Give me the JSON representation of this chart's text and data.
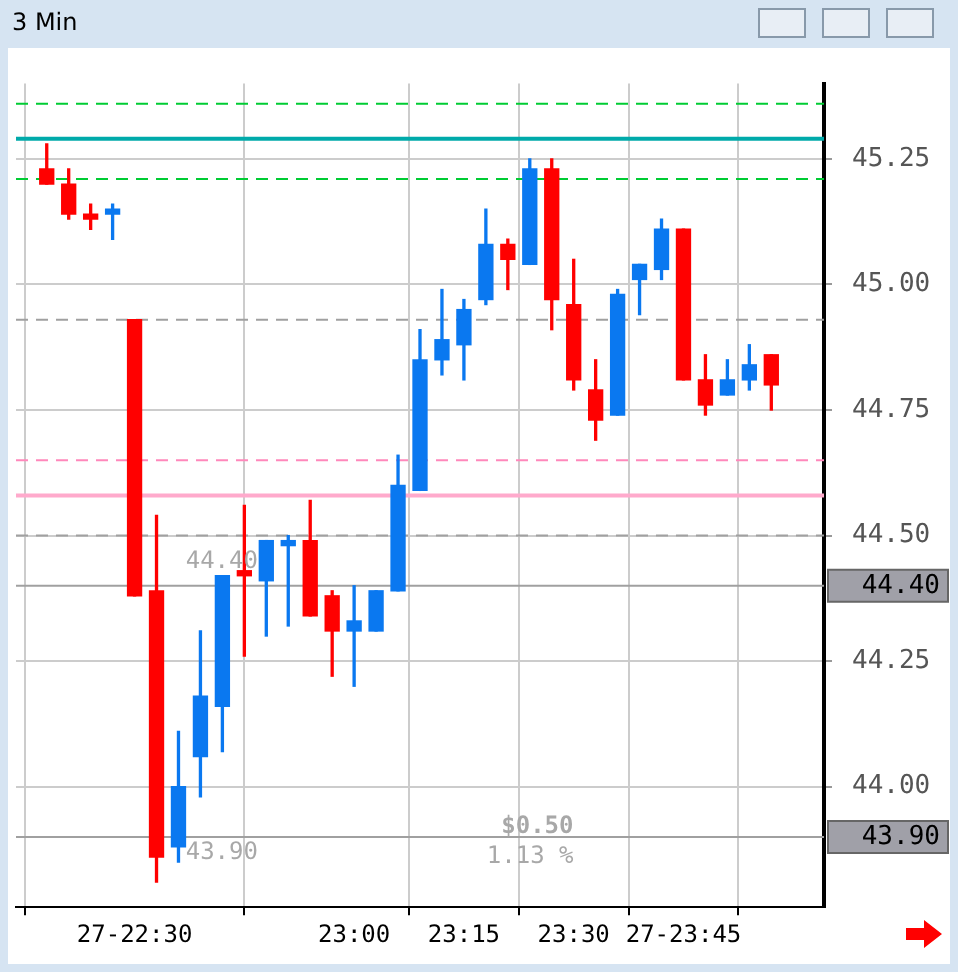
{
  "chart_data": {
    "type": "candlestick",
    "title": "3 Min",
    "x": [
      22.3,
      22.35,
      22.4,
      22.45,
      22.5,
      22.55,
      22.6,
      22.65,
      22.7,
      22.75,
      22.8,
      22.85,
      22.9,
      22.95,
      23,
      23.05,
      23.1,
      23.15,
      23.2,
      23.25,
      23.3,
      23.35,
      23.4,
      23.45,
      23.5,
      23.55,
      23.6,
      23.65,
      23.7,
      23.75,
      23.8,
      23.85,
      23.9,
      23.95
    ],
    "ohlc": [
      [
        45.23,
        45.28,
        45.2,
        45.2
      ],
      [
        45.2,
        45.23,
        45.13,
        45.14
      ],
      [
        45.14,
        45.16,
        45.11,
        45.13
      ],
      [
        45.14,
        45.16,
        45.09,
        45.15
      ],
      [
        44.93,
        44.93,
        44.38,
        44.38
      ],
      [
        44.39,
        44.54,
        43.81,
        43.86
      ],
      [
        43.88,
        44.11,
        43.85,
        44.0
      ],
      [
        44.06,
        44.31,
        43.98,
        44.18
      ],
      [
        44.16,
        44.42,
        44.07,
        44.42
      ],
      [
        44.43,
        44.56,
        44.26,
        44.42
      ],
      [
        44.41,
        44.49,
        44.3,
        44.49
      ],
      [
        44.48,
        44.5,
        44.32,
        44.49
      ],
      [
        44.49,
        44.57,
        44.34,
        44.34
      ],
      [
        44.38,
        44.39,
        44.22,
        44.31
      ],
      [
        44.31,
        44.4,
        44.2,
        44.33
      ],
      [
        44.31,
        44.39,
        44.31,
        44.39
      ],
      [
        44.39,
        44.66,
        44.39,
        44.6
      ],
      [
        44.59,
        44.91,
        44.59,
        44.85
      ],
      [
        44.85,
        44.99,
        44.82,
        44.89
      ],
      [
        44.88,
        44.97,
        44.81,
        44.95
      ],
      [
        44.97,
        45.15,
        44.96,
        45.08
      ],
      [
        45.08,
        45.09,
        44.99,
        45.05
      ],
      [
        45.04,
        45.25,
        45.04,
        45.23
      ],
      [
        45.23,
        45.25,
        44.91,
        44.97
      ],
      [
        44.96,
        45.05,
        44.79,
        44.81
      ],
      [
        44.79,
        44.85,
        44.69,
        44.73
      ],
      [
        44.74,
        44.99,
        44.74,
        44.98
      ],
      [
        45.01,
        45.04,
        44.94,
        45.04
      ],
      [
        45.03,
        45.13,
        45.01,
        45.11
      ],
      [
        45.11,
        45.11,
        44.81,
        44.81
      ],
      [
        44.81,
        44.86,
        44.74,
        44.76
      ],
      [
        44.78,
        44.85,
        44.78,
        44.81
      ],
      [
        44.81,
        44.88,
        44.79,
        44.84
      ],
      [
        44.86,
        44.86,
        44.75,
        44.8
      ]
    ],
    "colors": [
      "#ff0000",
      "#ff0000",
      "#ff0000",
      "#0a78f0",
      "#ff0000",
      "#ff0000",
      "#0a78f0",
      "#0a78f0",
      "#0a78f0",
      "#ff0000",
      "#0a78f0",
      "#0a78f0",
      "#ff0000",
      "#ff0000",
      "#0a78f0",
      "#0a78f0",
      "#0a78f0",
      "#0a78f0",
      "#0a78f0",
      "#0a78f0",
      "#0a78f0",
      "#ff0000",
      "#0a78f0",
      "#ff0000",
      "#ff0000",
      "#ff0000",
      "#0a78f0",
      "#0a78f0",
      "#0a78f0",
      "#ff0000",
      "#ff0000",
      "#0a78f0",
      "#0a78f0",
      "#ff0000"
    ],
    "xlim": [
      22.23,
      24.07
    ],
    "xticks": [
      {
        "value": 22.5,
        "label": "27-22:30"
      },
      {
        "value": 23,
        "label": "23:00"
      },
      {
        "value": 23.25,
        "label": "23:15"
      },
      {
        "value": 23.5,
        "label": "23:30"
      },
      {
        "value": 23.75,
        "label": "27-23:45"
      }
    ],
    "ylim": [
      43.76,
      45.4
    ],
    "yticks": [
      {
        "value": 44,
        "label": "44.00"
      },
      {
        "value": 44.25,
        "label": "44.25"
      },
      {
        "value": 44.5,
        "label": "44.50"
      },
      {
        "value": 44.75,
        "label": "44.75"
      },
      {
        "value": 45,
        "label": "45.00"
      },
      {
        "value": 45.25,
        "label": "45.25"
      }
    ],
    "ref_lines": [
      {
        "axis": "y",
        "value": 45.36,
        "color": "#00cc33",
        "line_style": "dashed"
      },
      {
        "axis": "y",
        "value": 45.29,
        "color": "#00aaaa",
        "line_style": "solid"
      },
      {
        "axis": "y",
        "value": 45.21,
        "color": "#00cc33",
        "line_style": "dashed"
      },
      {
        "axis": "y",
        "value": 44.93,
        "color": "#a0a0a0",
        "line_style": "dashed"
      },
      {
        "axis": "y",
        "value": 44.65,
        "color": "#ff88bb",
        "line_style": "dashed"
      },
      {
        "axis": "y",
        "value": 44.58,
        "color": "#ffaacc",
        "line_style": "solid"
      },
      {
        "axis": "y",
        "value": 44.5,
        "color": "#a0a0a0",
        "line_style": "dashed"
      },
      {
        "axis": "y",
        "value": 44.4,
        "label": "44.40",
        "color": "#a0a0a0",
        "line_style": "solid"
      },
      {
        "axis": "y",
        "value": 43.9,
        "label": "43.90",
        "color": "#a0a0a0",
        "line_style": "solid"
      }
    ],
    "annotations": [
      "$0.50",
      "1.13 %"
    ],
    "grid": true
  }
}
